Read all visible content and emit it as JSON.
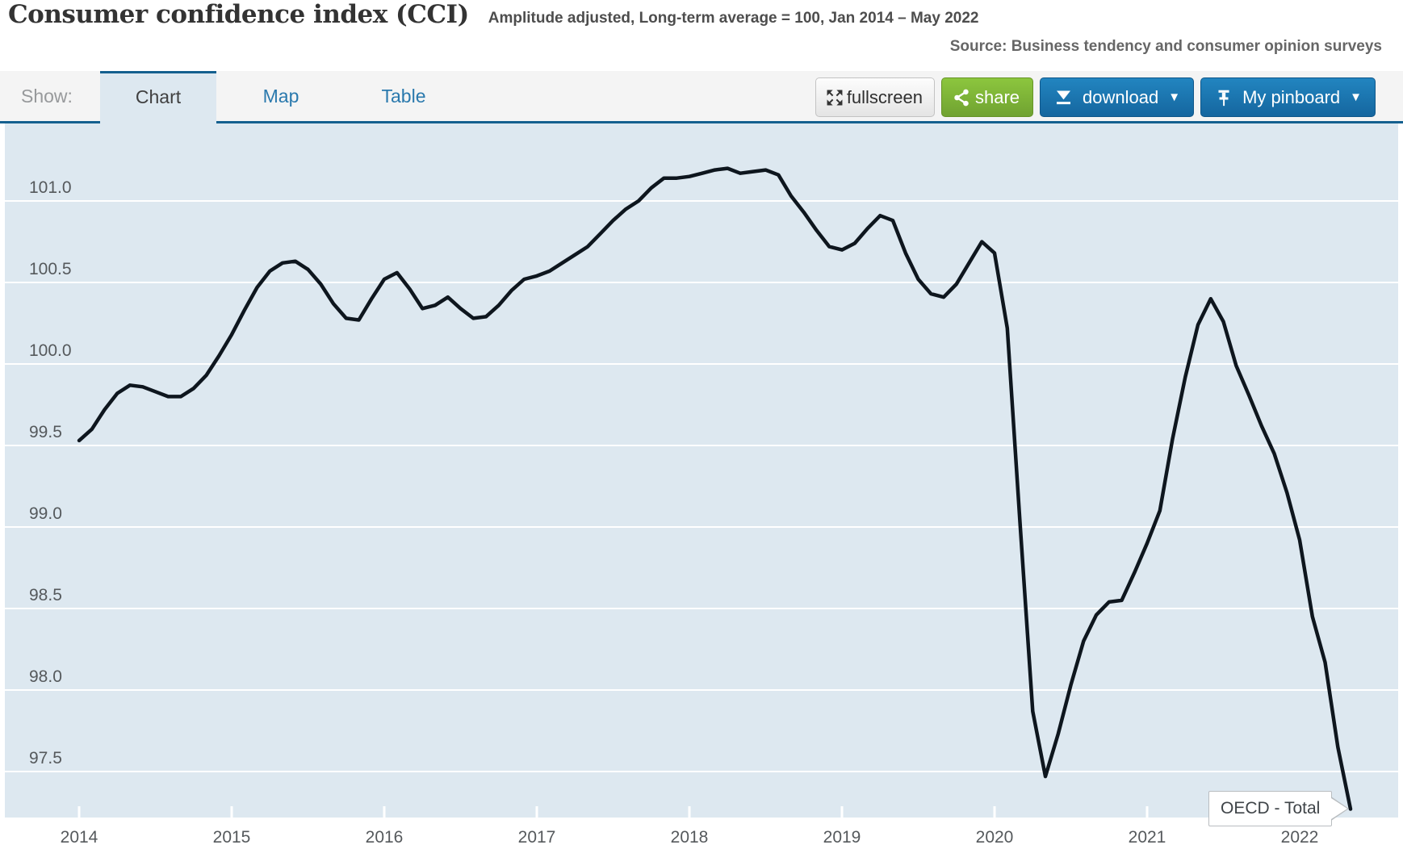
{
  "header": {
    "title": "Consumer confidence index (CCI)",
    "subtitle": "Amplitude adjusted, Long-term average = 100, Jan 2014 – May 2022",
    "source": "Source: Business tendency and consumer opinion surveys"
  },
  "toolbar": {
    "show_label": "Show:",
    "tabs": [
      {
        "label": "Chart",
        "active": true
      },
      {
        "label": "Map",
        "active": false
      },
      {
        "label": "Table",
        "active": false
      }
    ],
    "buttons": {
      "fullscreen": "fullscreen",
      "share": "share",
      "download": "download",
      "pinboard": "My pinboard",
      "caret": "▼"
    },
    "icons": [
      "fullscreen-icon",
      "share-icon",
      "download-icon",
      "pin-icon"
    ]
  },
  "tooltip": {
    "label": "OECD - Total"
  },
  "colors": {
    "plot_bg": "#dde8f0",
    "gridline": "#ffffff",
    "line": "#0e161e",
    "tab_accent": "#14608f",
    "link_blue": "#2a79ad",
    "green_button": "#8cc63e",
    "blue_button": "#1b7ab8",
    "axis_label": "#55595c"
  },
  "chart_data": {
    "type": "line",
    "title": "Consumer confidence index (CCI)",
    "subtitle": "Amplitude adjusted, Long-term average = 100, Jan 2014 – May 2022",
    "series_name": "OECD - Total",
    "x_start": "2014-01",
    "x_end": "2022-05",
    "frequency": "monthly",
    "ylim": [
      97.2,
      101.35
    ],
    "yticks": [
      101.0,
      100.5,
      100.0,
      99.5,
      99.0,
      98.5,
      98.0,
      97.5
    ],
    "xticks": [
      "2014",
      "2015",
      "2016",
      "2017",
      "2018",
      "2019",
      "2020",
      "2021",
      "2022"
    ],
    "grid": true,
    "legend_position": "tooltip-at-line-end",
    "series": [
      {
        "name": "OECD - Total",
        "values": [
          99.53,
          99.6,
          99.72,
          99.82,
          99.87,
          99.86,
          99.83,
          99.8,
          99.8,
          99.85,
          99.93,
          100.05,
          100.18,
          100.33,
          100.47,
          100.57,
          100.62,
          100.63,
          100.58,
          100.49,
          100.37,
          100.28,
          100.27,
          100.4,
          100.52,
          100.56,
          100.46,
          100.34,
          100.36,
          100.41,
          100.34,
          100.28,
          100.29,
          100.36,
          100.45,
          100.52,
          100.54,
          100.57,
          100.62,
          100.67,
          100.72,
          100.8,
          100.88,
          100.95,
          101.0,
          101.08,
          101.14,
          101.14,
          101.15,
          101.17,
          101.19,
          101.2,
          101.17,
          101.18,
          101.19,
          101.16,
          101.03,
          100.93,
          100.82,
          100.72,
          100.7,
          100.74,
          100.83,
          100.91,
          100.88,
          100.68,
          100.52,
          100.43,
          100.41,
          100.49,
          100.62,
          100.75,
          100.68,
          100.22,
          99.03,
          97.87,
          97.47,
          97.73,
          98.03,
          98.3,
          98.46,
          98.54,
          98.55,
          98.72,
          98.9,
          99.1,
          99.54,
          99.92,
          100.24,
          100.4,
          100.26,
          99.99,
          99.81,
          99.62,
          99.45,
          99.21,
          98.92,
          98.45,
          98.17,
          97.65,
          97.27
        ]
      }
    ]
  }
}
